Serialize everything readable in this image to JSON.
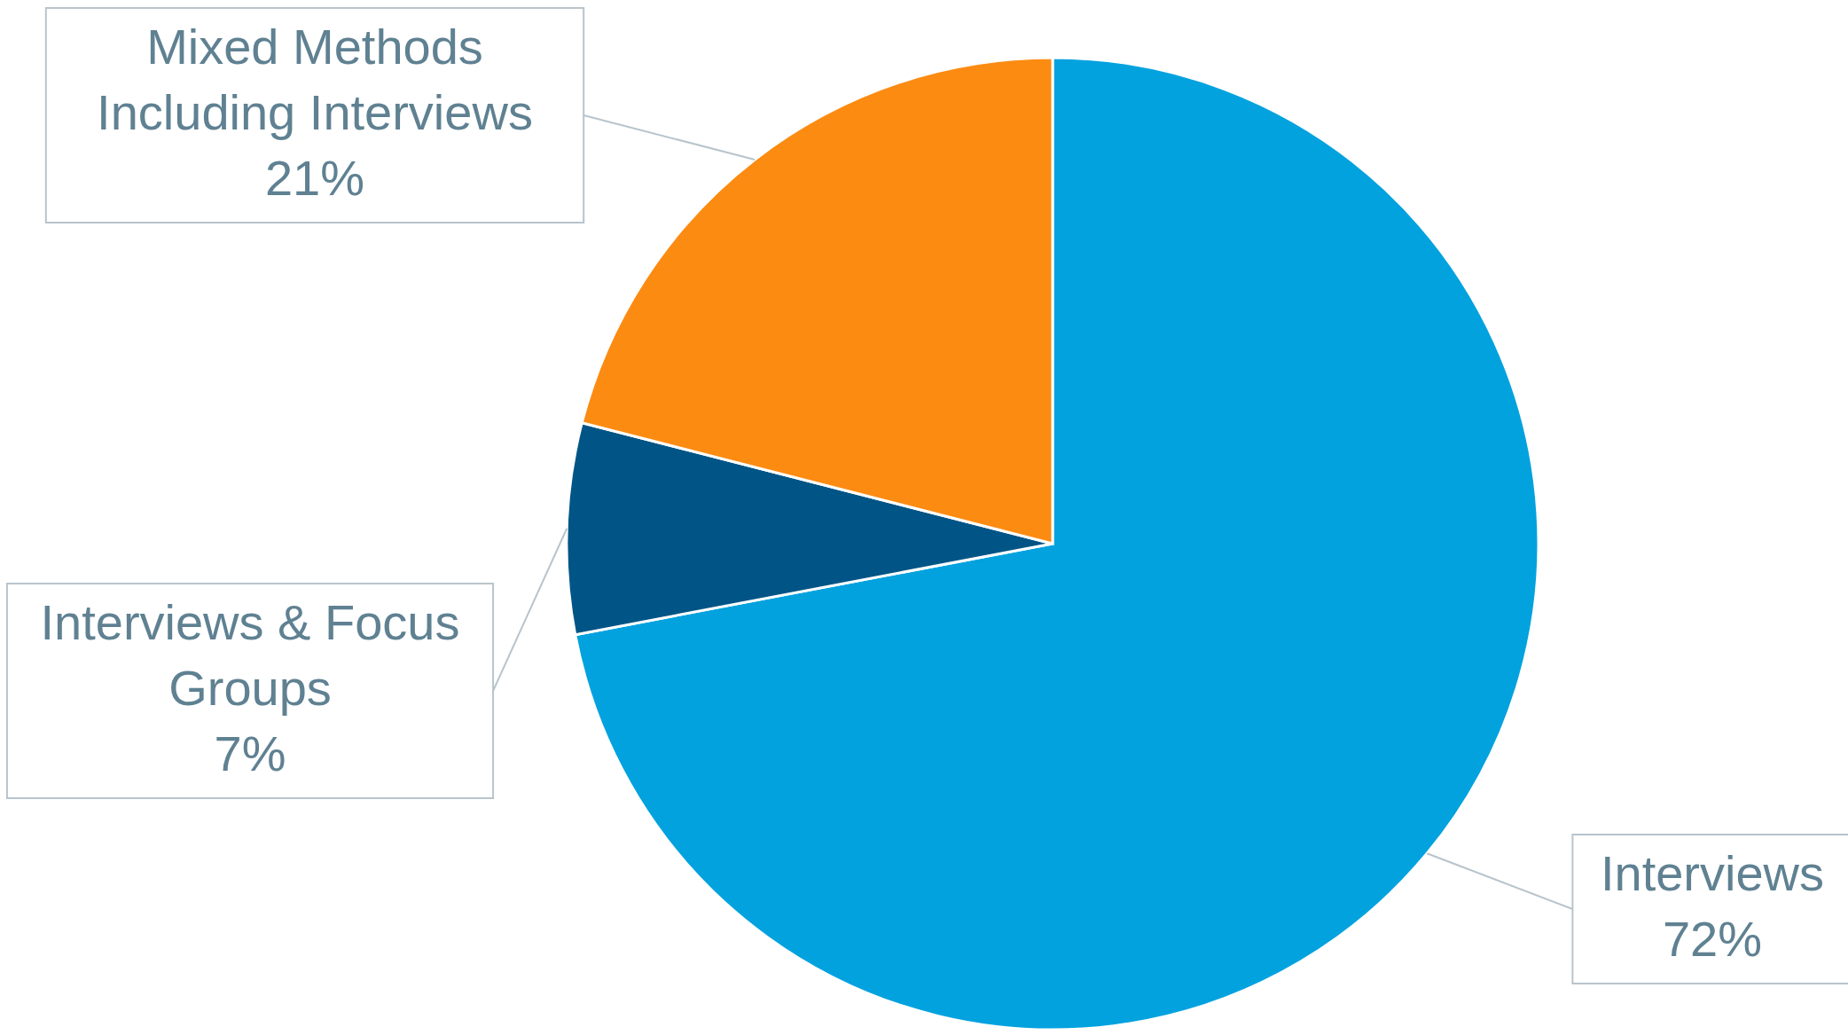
{
  "chart_data": {
    "type": "pie",
    "categories": [
      "Interviews",
      "Interviews & Focus Groups",
      "Mixed Methods Including Interviews"
    ],
    "values": [
      72,
      7,
      21
    ],
    "colors": [
      "#02a2df",
      "#015586",
      "#fc8b12"
    ],
    "value_labels": [
      "72%",
      "7%",
      "21%"
    ],
    "legend": false
  }
}
